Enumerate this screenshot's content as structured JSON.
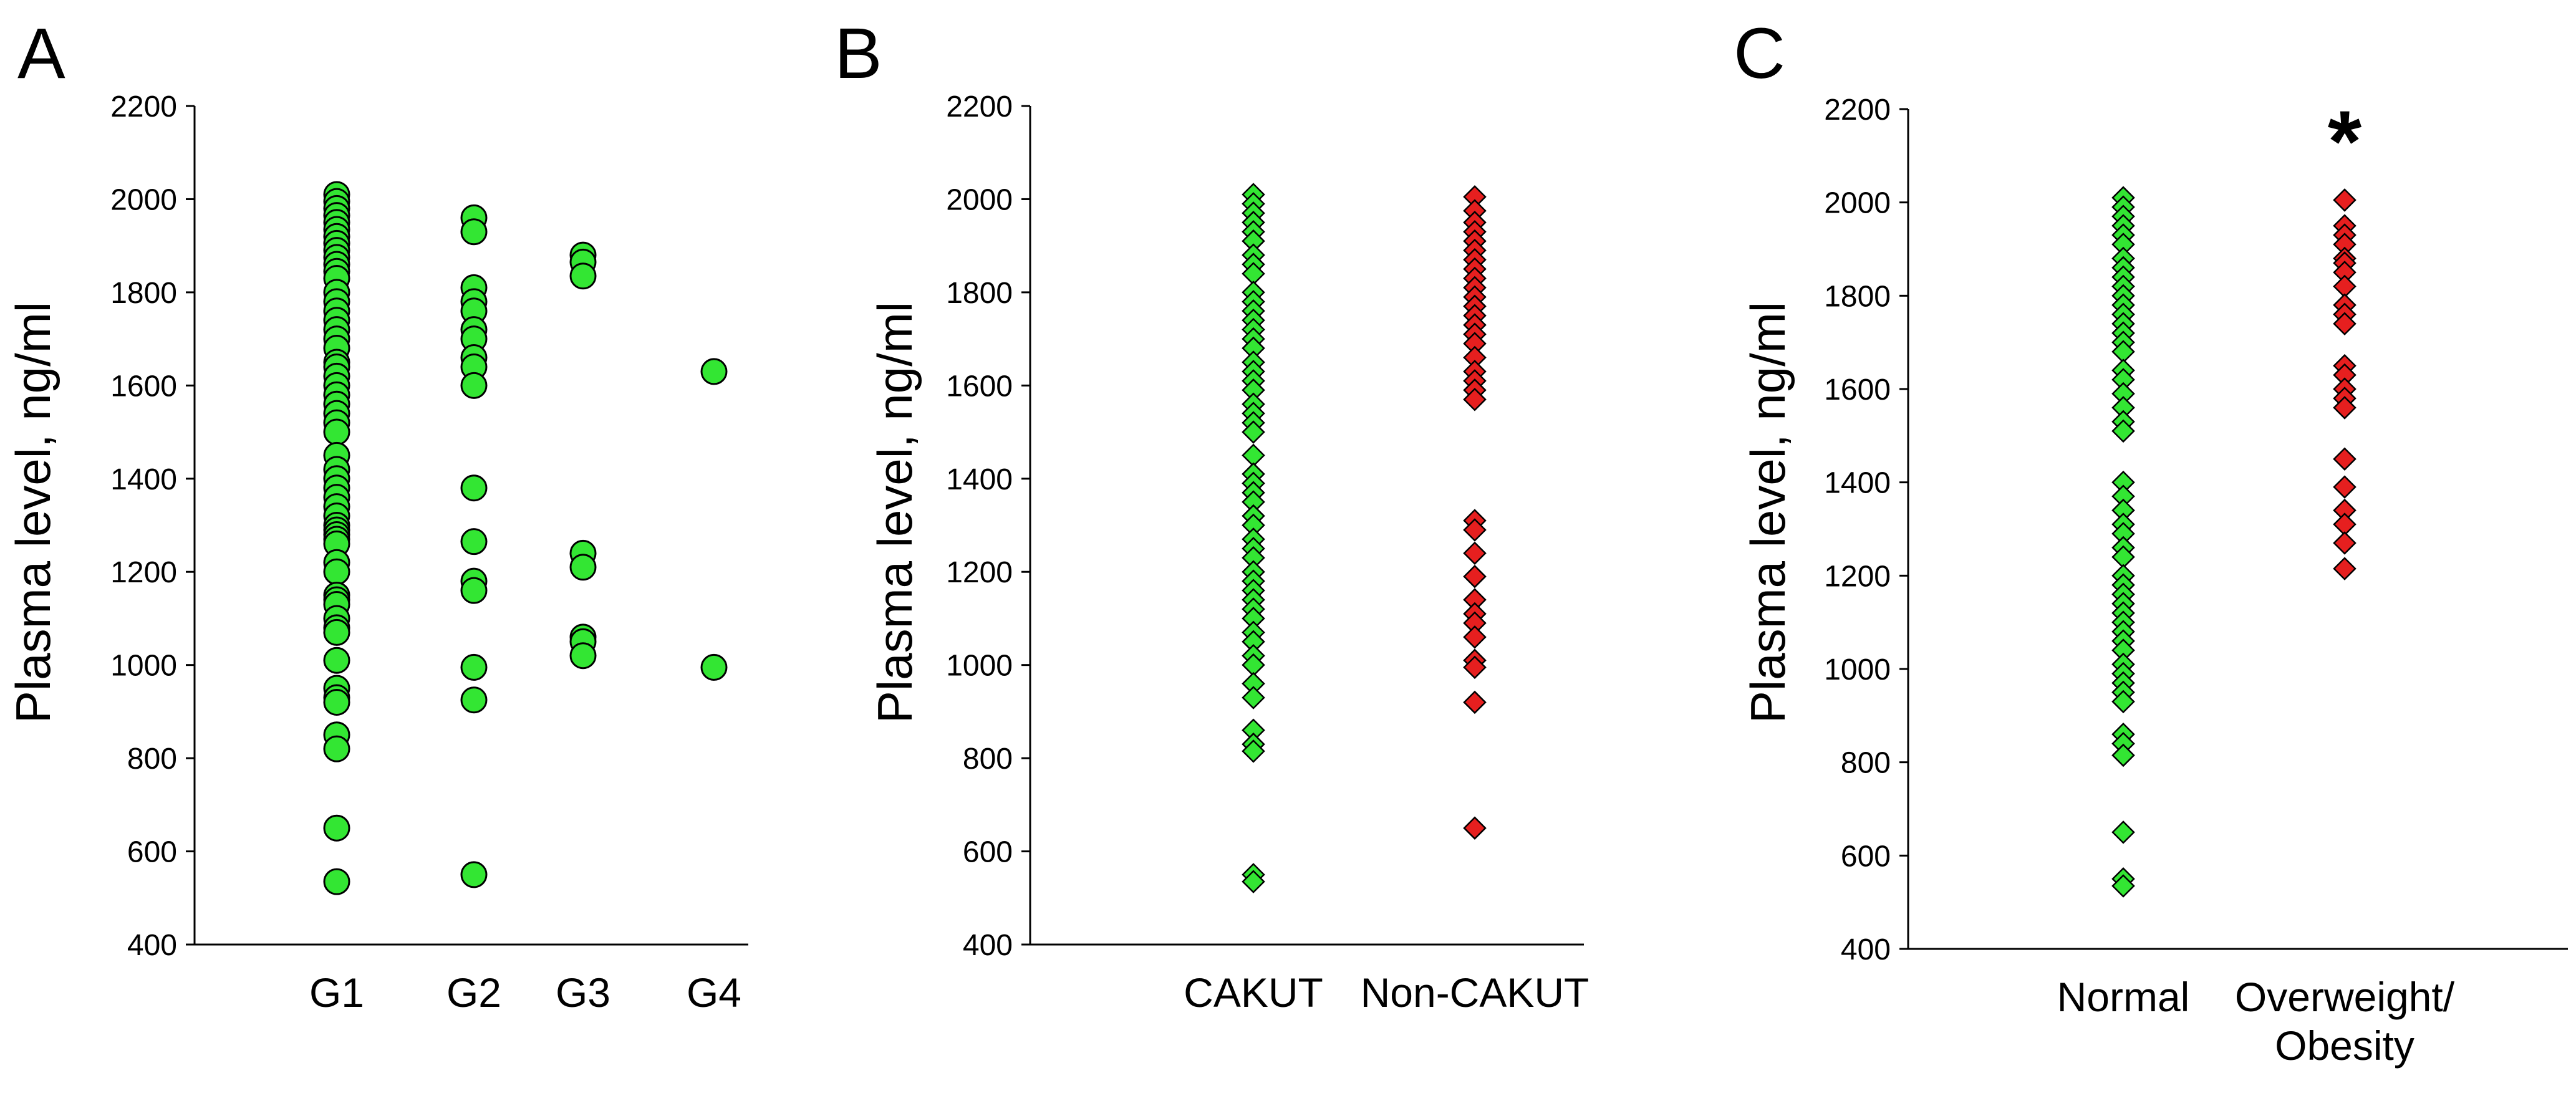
{
  "chart_data": [
    {
      "type": "scatter",
      "panel_label": "A",
      "ylabel": "Plasma level, ng/ml",
      "ylim": [
        400,
        2200
      ],
      "yticks": [
        400,
        600,
        800,
        1000,
        1200,
        1400,
        1600,
        1800,
        2000,
        2200
      ],
      "categories": [
        "G1",
        "G2",
        "G3",
        "G4"
      ],
      "marker_shape": "circle",
      "marker_color": "#33e633",
      "series": [
        {
          "category": "G1",
          "values": [
            2010,
            1995,
            1980,
            1965,
            1950,
            1935,
            1920,
            1905,
            1890,
            1875,
            1860,
            1845,
            1830,
            1800,
            1780,
            1760,
            1740,
            1720,
            1700,
            1680,
            1650,
            1640,
            1620,
            1600,
            1580,
            1560,
            1540,
            1520,
            1500,
            1450,
            1420,
            1400,
            1380,
            1360,
            1340,
            1320,
            1300,
            1290,
            1280,
            1270,
            1260,
            1220,
            1200,
            1150,
            1140,
            1130,
            1100,
            1080,
            1070,
            1010,
            950,
            930,
            920,
            850,
            820,
            650,
            535
          ]
        },
        {
          "category": "G2",
          "values": [
            1960,
            1930,
            1810,
            1780,
            1760,
            1720,
            1700,
            1660,
            1640,
            1600,
            1380,
            1265,
            1180,
            1160,
            995,
            925,
            550
          ]
        },
        {
          "category": "G3",
          "values": [
            1880,
            1865,
            1835,
            1240,
            1210,
            1060,
            1050,
            1020
          ]
        },
        {
          "category": "G4",
          "values": [
            1630,
            995
          ]
        }
      ]
    },
    {
      "type": "scatter",
      "panel_label": "B",
      "ylabel": "Plasma level, ng/ml",
      "ylim": [
        400,
        2200
      ],
      "yticks": [
        400,
        600,
        800,
        1000,
        1200,
        1400,
        1600,
        1800,
        2000,
        2200
      ],
      "categories": [
        "CAKUT",
        "Non-CAKUT"
      ],
      "marker_shape": "diamond",
      "series": [
        {
          "category": "CAKUT",
          "color": "#33e633",
          "values": [
            2010,
            1990,
            1970,
            1950,
            1930,
            1910,
            1880,
            1860,
            1840,
            1800,
            1780,
            1760,
            1740,
            1720,
            1700,
            1680,
            1650,
            1630,
            1610,
            1590,
            1560,
            1540,
            1520,
            1500,
            1450,
            1410,
            1390,
            1370,
            1350,
            1320,
            1300,
            1270,
            1250,
            1230,
            1200,
            1180,
            1160,
            1140,
            1120,
            1100,
            1070,
            1050,
            1020,
            1000,
            960,
            930,
            860,
            830,
            815,
            550,
            535
          ]
        },
        {
          "category": "Non-CAKUT",
          "color": "#e61f1f",
          "values": [
            2005,
            1975,
            1950,
            1930,
            1910,
            1890,
            1870,
            1850,
            1830,
            1810,
            1790,
            1770,
            1750,
            1730,
            1710,
            1690,
            1660,
            1630,
            1610,
            1590,
            1570,
            1310,
            1290,
            1240,
            1190,
            1140,
            1110,
            1090,
            1060,
            1010,
            995,
            920,
            650
          ]
        }
      ]
    },
    {
      "type": "scatter",
      "panel_label": "C",
      "ylabel": "Plasma level, ng/ml",
      "ylim": [
        400,
        2200
      ],
      "yticks": [
        400,
        600,
        800,
        1000,
        1200,
        1400,
        1600,
        1800,
        2000,
        2200
      ],
      "categories": [
        "Normal",
        "Overweight/ Obesity"
      ],
      "annotation": "*",
      "marker_shape": "diamond",
      "series": [
        {
          "category": "Normal",
          "color": "#33e633",
          "values": [
            2010,
            1990,
            1970,
            1950,
            1930,
            1910,
            1880,
            1860,
            1840,
            1820,
            1800,
            1780,
            1760,
            1740,
            1720,
            1700,
            1680,
            1640,
            1620,
            1590,
            1560,
            1530,
            1510,
            1400,
            1370,
            1340,
            1310,
            1290,
            1260,
            1240,
            1200,
            1180,
            1160,
            1140,
            1120,
            1100,
            1080,
            1060,
            1040,
            1010,
            990,
            970,
            950,
            930,
            860,
            840,
            815,
            650,
            550,
            535
          ]
        },
        {
          "category": "Overweight/ Obesity",
          "color": "#e61f1f",
          "values": [
            2005,
            1950,
            1930,
            1910,
            1880,
            1870,
            1850,
            1820,
            1780,
            1760,
            1740,
            1650,
            1630,
            1600,
            1580,
            1560,
            1450,
            1390,
            1340,
            1310,
            1270,
            1215
          ]
        }
      ]
    }
  ]
}
